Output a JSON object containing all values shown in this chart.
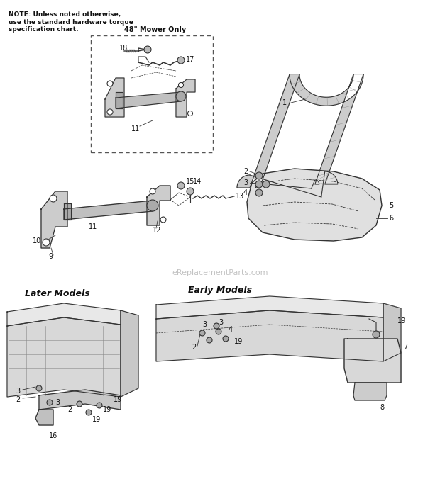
{
  "bg_color": "#ffffff",
  "note_text1": "NOTE: Unless noted otherwise,",
  "note_text2": "use the standard hardware torque",
  "note_text3": "specification chart.",
  "mower_only_text": "48\" Mower Only",
  "early_models_text": "Early Models",
  "later_models_text": "Later Models",
  "watermark": "eReplacementParts.com",
  "diagram_color": "#333333",
  "label_color": "#111111",
  "label_fontsize": 7,
  "note_fontsize": 6.5,
  "fig_w": 6.2,
  "fig_h": 7.07,
  "dpi": 100
}
